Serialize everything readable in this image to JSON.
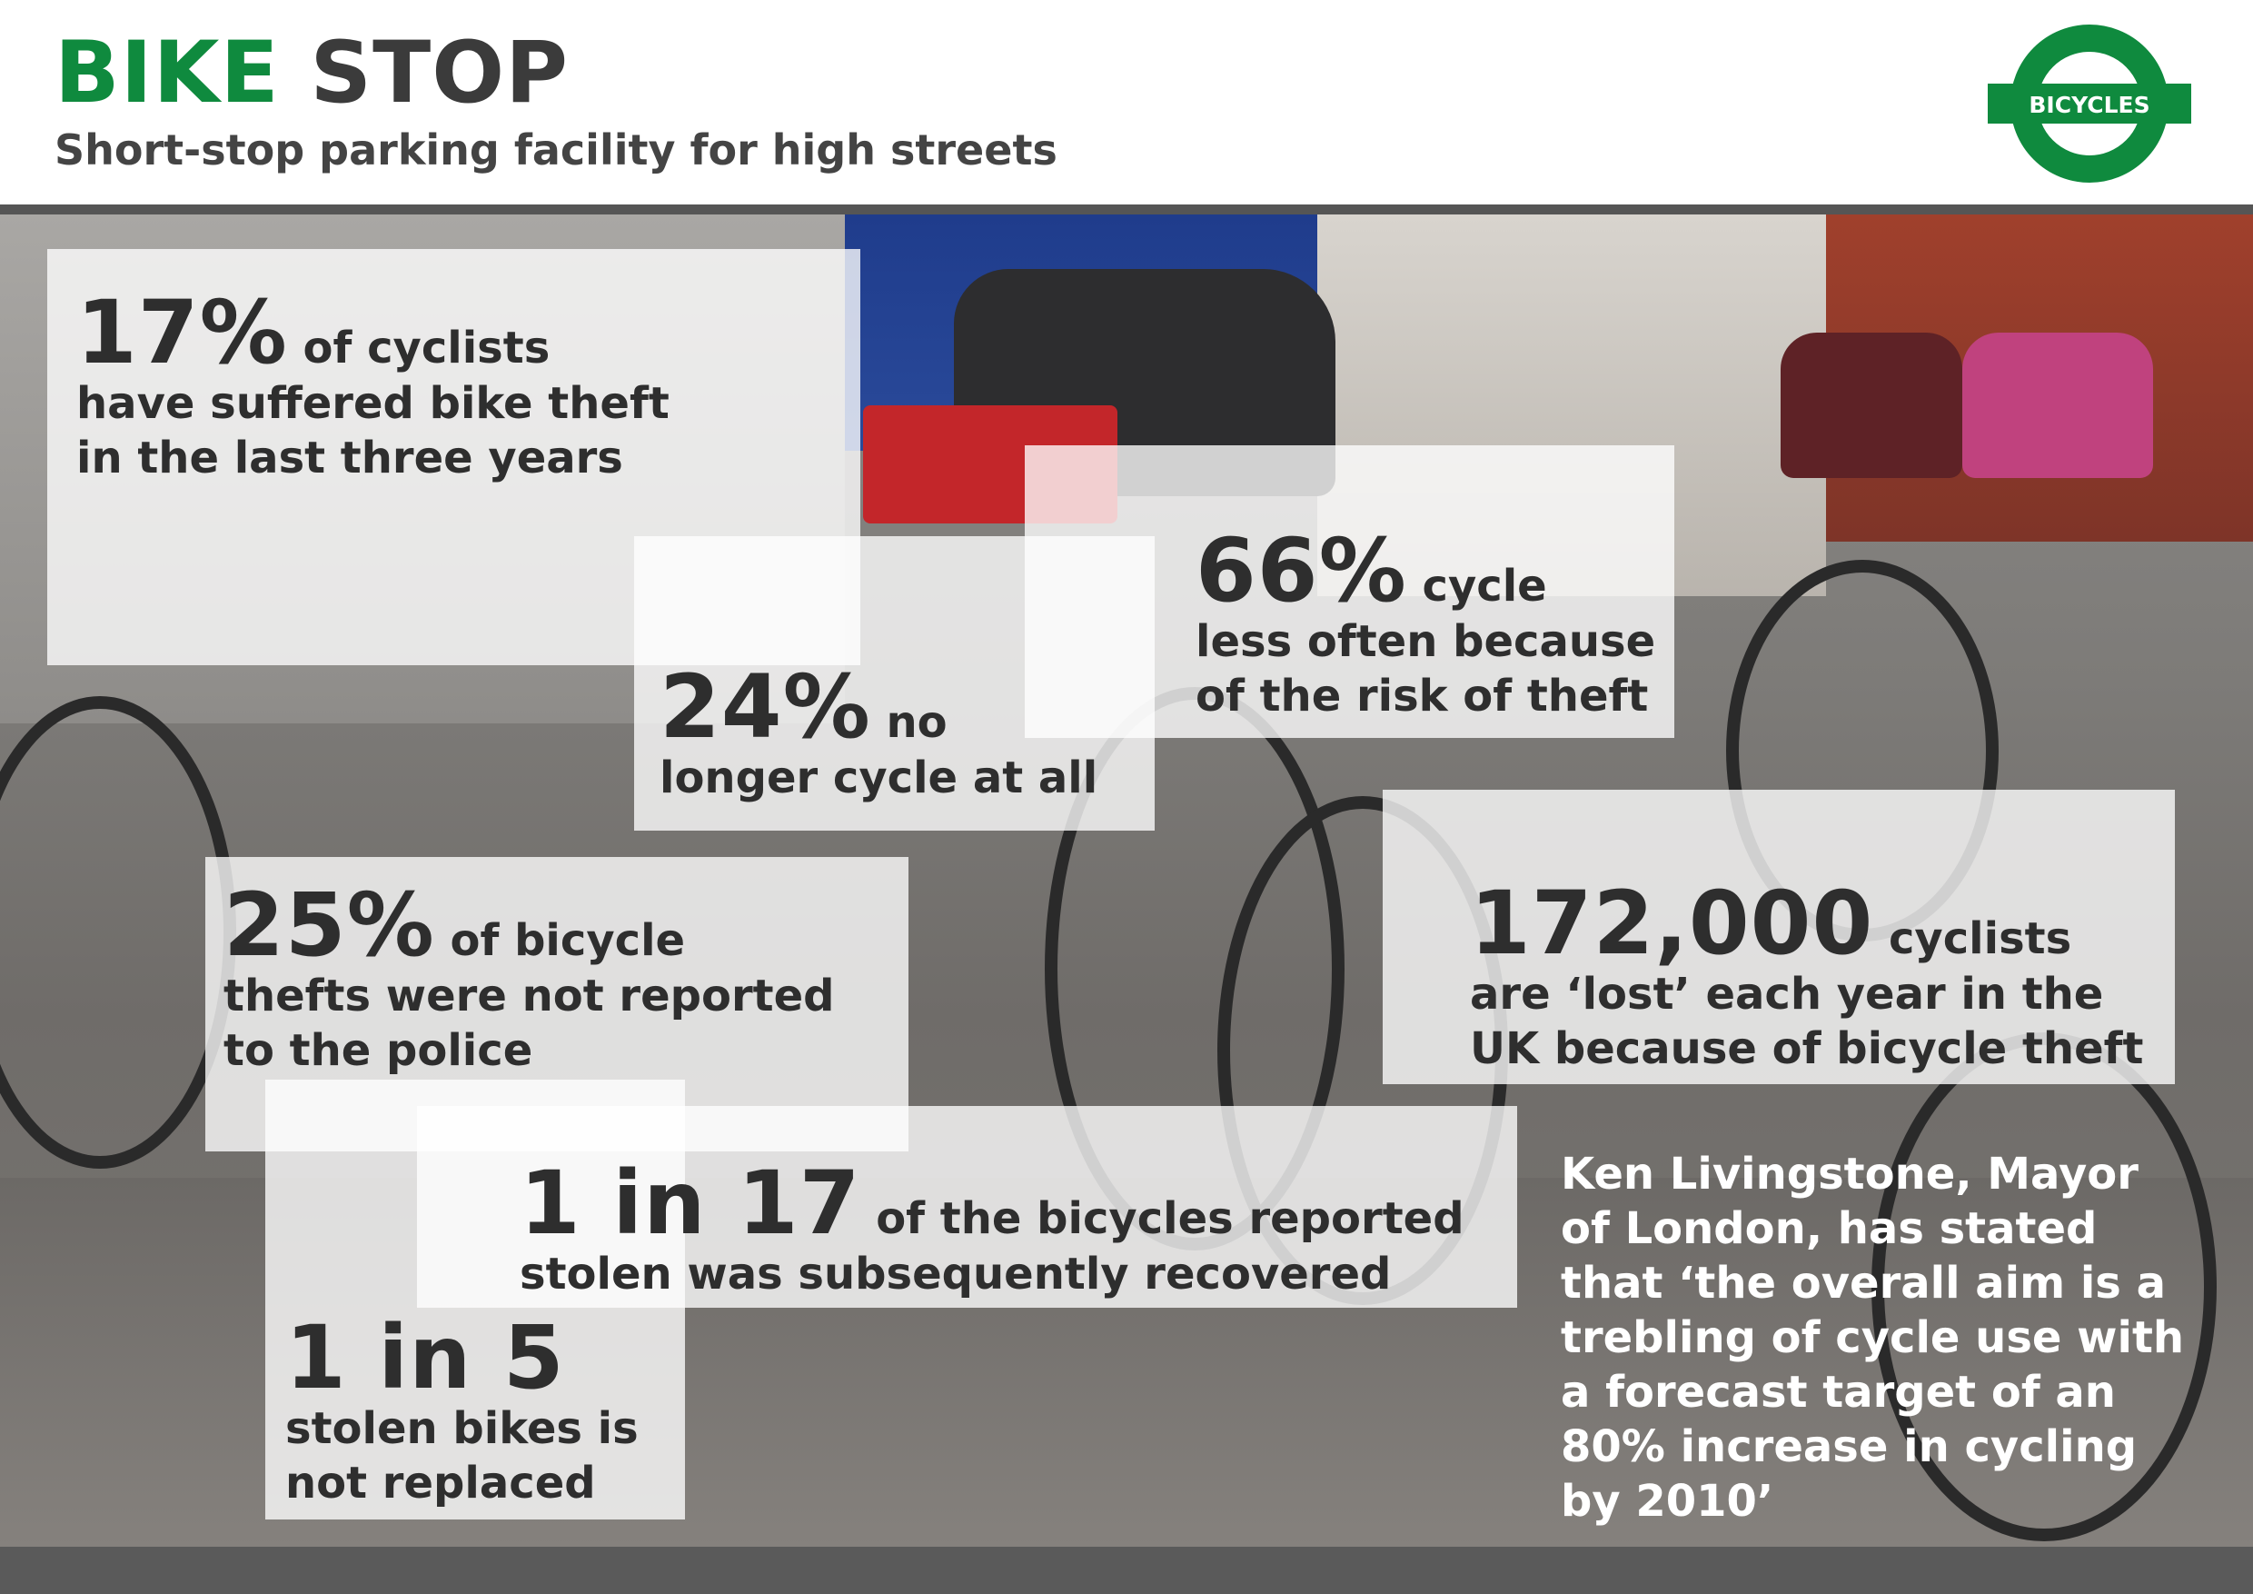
{
  "header": {
    "title_part1": "BIKE",
    "title_part2": "STOP",
    "subtitle": "Short-stop parking facility for high streets",
    "logo_text": "BICYCLES"
  },
  "colors": {
    "brand_green": "#0f8a3e",
    "dark_text": "#2e2e2e",
    "bar_grey": "#555555"
  },
  "stats": [
    {
      "big": "17%",
      "lines": [
        "of cyclists",
        "have suffered bike theft",
        "in the last three years"
      ]
    },
    {
      "big": "24%",
      "lines": [
        "no",
        "longer cycle at all"
      ]
    },
    {
      "big": "66%",
      "lines": [
        "cycle",
        "less often because",
        "of the risk of theft"
      ]
    },
    {
      "big": "25%",
      "lines": [
        "of bicycle",
        "thefts were not reported",
        "to the police"
      ]
    },
    {
      "big": "172,000",
      "lines": [
        "cyclists",
        "are ‘lost’ each year in the",
        "UK because of bicycle theft"
      ]
    },
    {
      "big": "1 in 17",
      "lines": [
        "of the bicycles reported",
        "stolen was subsequently recovered"
      ]
    },
    {
      "big": "1 in 5",
      "lines": [
        "stolen bikes is",
        "not replaced"
      ]
    }
  ],
  "quote": {
    "lines": [
      "Ken Livingstone, Mayor",
      "of London, has stated",
      "that ‘the overall aim is a",
      "trebling of cycle use with",
      "a forecast target of an",
      "80% increase in cycling",
      "by 2010’"
    ]
  }
}
